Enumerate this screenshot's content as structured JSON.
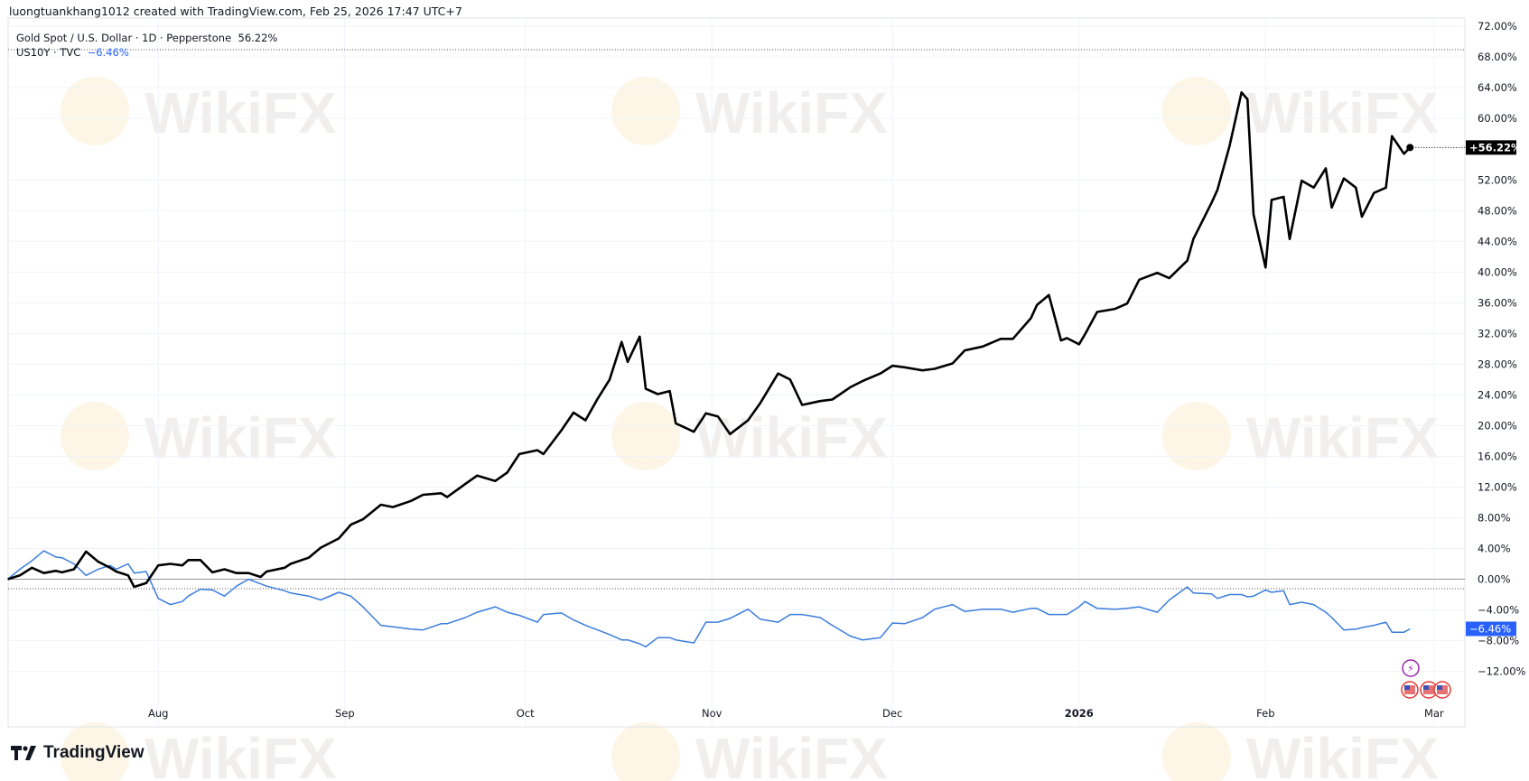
{
  "header": {
    "text": "luongtuankhang1012 created with TradingView.com, Feb 25, 2026 17:47 UTC+7"
  },
  "legend": {
    "series1": "Gold Spot / U.S. Dollar · 1D · Pepperstone",
    "series1_value": "56.22%",
    "series2": "US10Y · TVC",
    "series2_value": "−6.46%"
  },
  "brand": {
    "name": "TradingView",
    "watermark": "WikiFX"
  },
  "colors": {
    "gold": "#000000",
    "us10y": "#3b7ddd",
    "grid": "#f0f3fa",
    "us10y_badge": "#2962ff"
  },
  "chart_data": {
    "type": "line",
    "title": "",
    "xlabel": "",
    "ylabel": "",
    "ylim": [
      -14,
      72
    ],
    "y_unit": "%",
    "grid": true,
    "y_ticks": [
      "72.00%",
      "68.00%",
      "64.00%",
      "60.00%",
      "52.00%",
      "48.00%",
      "44.00%",
      "40.00%",
      "36.00%",
      "32.00%",
      "28.00%",
      "24.00%",
      "20.00%",
      "16.00%",
      "12.00%",
      "8.00%",
      "4.00%",
      "0.00%",
      "−4.00%",
      "−8.00%",
      "−12.00%"
    ],
    "y_tick_values": [
      72,
      68,
      64,
      60,
      52,
      48,
      44,
      40,
      36,
      32,
      28,
      24,
      20,
      16,
      12,
      8,
      4,
      0,
      -4,
      -8,
      -12
    ],
    "x_ticks": [
      {
        "label": "Aug",
        "date": "2025-08-01"
      },
      {
        "label": "Sep",
        "date": "2025-09-01"
      },
      {
        "label": "Oct",
        "date": "2025-10-01"
      },
      {
        "label": "Nov",
        "date": "2025-11-01"
      },
      {
        "label": "Dec",
        "date": "2025-12-01"
      },
      {
        "label": "2026",
        "date": "2026-01-01"
      },
      {
        "label": "Feb",
        "date": "2026-02-01"
      },
      {
        "label": "Mar",
        "date": "2026-03-01"
      }
    ],
    "xlim": [
      "2025-07-07",
      "2026-03-06"
    ],
    "x": [
      "2025-07-07",
      "2025-07-09",
      "2025-07-11",
      "2025-07-13",
      "2025-07-15",
      "2025-07-16",
      "2025-07-18",
      "2025-07-20",
      "2025-07-22",
      "2025-07-24",
      "2025-07-25",
      "2025-07-27",
      "2025-07-28",
      "2025-07-30",
      "2025-08-01",
      "2025-08-03",
      "2025-08-05",
      "2025-08-06",
      "2025-08-08",
      "2025-08-10",
      "2025-08-12",
      "2025-08-14",
      "2025-08-16",
      "2025-08-18",
      "2025-08-19",
      "2025-08-22",
      "2025-08-23",
      "2025-08-26",
      "2025-08-28",
      "2025-08-31",
      "2025-09-02",
      "2025-09-04",
      "2025-09-07",
      "2025-09-09",
      "2025-09-12",
      "2025-09-14",
      "2025-09-17",
      "2025-09-18",
      "2025-09-21",
      "2025-09-23",
      "2025-09-26",
      "2025-09-28",
      "2025-09-30",
      "2025-10-03",
      "2025-10-04",
      "2025-10-07",
      "2025-10-09",
      "2025-10-11",
      "2025-10-13",
      "2025-10-15",
      "2025-10-17",
      "2025-10-18",
      "2025-10-20",
      "2025-10-21",
      "2025-10-23",
      "2025-10-25",
      "2025-10-26",
      "2025-10-29",
      "2025-10-31",
      "2025-11-02",
      "2025-11-04",
      "2025-11-07",
      "2025-11-09",
      "2025-11-12",
      "2025-11-14",
      "2025-11-16",
      "2025-11-19",
      "2025-11-21",
      "2025-11-24",
      "2025-11-26",
      "2025-11-29",
      "2025-12-01",
      "2025-12-03",
      "2025-12-06",
      "2025-12-08",
      "2025-12-11",
      "2025-12-13",
      "2025-12-16",
      "2025-12-19",
      "2025-12-21",
      "2025-12-24",
      "2025-12-25",
      "2025-12-27",
      "2025-12-29",
      "2025-12-30",
      "2026-01-01",
      "2026-01-02",
      "2026-01-04",
      "2026-01-07",
      "2026-01-09",
      "2026-01-11",
      "2026-01-14",
      "2026-01-16",
      "2026-01-19",
      "2026-01-20",
      "2026-01-23",
      "2026-01-24",
      "2026-01-26",
      "2026-01-28",
      "2026-01-29",
      "2026-01-30",
      "2026-02-01",
      "2026-02-02",
      "2026-02-04",
      "2026-02-05",
      "2026-02-07",
      "2026-02-09",
      "2026-02-11",
      "2026-02-12",
      "2026-02-14",
      "2026-02-16",
      "2026-02-17",
      "2026-02-19",
      "2026-02-21",
      "2026-02-22",
      "2026-02-24",
      "2026-02-25"
    ],
    "series": [
      {
        "name": "Gold Spot / U.S. Dollar · 1D · Pepperstone",
        "color": "#000000",
        "last_label": "+56.22%",
        "values": [
          0,
          0.5,
          1.5,
          0.8,
          1.1,
          0.9,
          1.3,
          3.6,
          2.3,
          1.5,
          1.0,
          0.5,
          -1.0,
          -0.5,
          1.8,
          2.0,
          1.8,
          2.5,
          2.5,
          0.9,
          1.3,
          0.8,
          0.8,
          0.3,
          1.0,
          1.5,
          2.0,
          2.8,
          4.1,
          5.3,
          7.1,
          7.8,
          9.7,
          9.4,
          10.2,
          11.0,
          11.2,
          10.7,
          12.4,
          13.5,
          12.8,
          13.9,
          16.3,
          16.8,
          16.3,
          19.4,
          21.7,
          20.7,
          23.5,
          26.0,
          30.9,
          28.3,
          31.6,
          24.8,
          24.1,
          24.5,
          20.3,
          19.2,
          21.6,
          21.2,
          18.9,
          20.7,
          22.9,
          26.8,
          26.0,
          22.7,
          23.2,
          23.4,
          25.0,
          25.8,
          26.8,
          27.8,
          27.6,
          27.2,
          27.4,
          28.1,
          29.8,
          30.3,
          31.3,
          31.3,
          34.0,
          35.7,
          37.0,
          31.1,
          31.4,
          30.6,
          31.9,
          34.8,
          35.2,
          35.9,
          39.0,
          39.9,
          39.2,
          41.5,
          44.3,
          49.0,
          50.7,
          56.4,
          63.4,
          62.5,
          47.5,
          40.6,
          49.4,
          49.8,
          44.3,
          51.9,
          51.0,
          53.5,
          48.4,
          52.2,
          51.0,
          47.2,
          50.3,
          51.0,
          57.7,
          55.4,
          56.22
        ]
      },
      {
        "name": "US10Y · TVC",
        "color": "#3b7ddd",
        "last_label": "−6.46%",
        "values": [
          0,
          1.3,
          2.4,
          3.7,
          2.9,
          2.8,
          2.0,
          0.5,
          1.3,
          1.8,
          1.3,
          2.0,
          0.8,
          1.0,
          -2.5,
          -3.3,
          -2.9,
          -2.2,
          -1.3,
          -1.4,
          -2.2,
          -0.9,
          0,
          -0.6,
          -0.9,
          -1.5,
          -1.8,
          -2.2,
          -2.7,
          -1.7,
          -2.2,
          -3.6,
          -6.0,
          -6.2,
          -6.5,
          -6.6,
          -5.8,
          -5.8,
          -5.0,
          -4.3,
          -3.6,
          -4.3,
          -4.7,
          -5.6,
          -4.6,
          -4.4,
          -5.3,
          -6.0,
          -6.6,
          -7.2,
          -7.9,
          -7.9,
          -8.4,
          -8.8,
          -7.6,
          -7.6,
          -7.9,
          -8.3,
          -5.6,
          -5.6,
          -5.1,
          -3.9,
          -5.2,
          -5.6,
          -4.6,
          -4.6,
          -5.0,
          -6.0,
          -7.4,
          -7.9,
          -7.6,
          -5.7,
          -5.8,
          -5.0,
          -3.9,
          -3.3,
          -4.2,
          -3.9,
          -3.9,
          -4.3,
          -3.8,
          -3.8,
          -4.6,
          -4.6,
          -4.6,
          -3.6,
          -2.9,
          -3.8,
          -3.9,
          -3.8,
          -3.6,
          -4.3,
          -2.7,
          -1.0,
          -1.8,
          -1.9,
          -2.5,
          -2.0,
          -2.0,
          -2.3,
          -2.2,
          -1.4,
          -1.7,
          -1.5,
          -3.3,
          -3.0,
          -3.3,
          -4.3,
          -5.0,
          -6.6,
          -6.5,
          -6.3,
          -6.0,
          -5.6,
          -6.9,
          -6.9,
          -6.46
        ]
      }
    ]
  }
}
